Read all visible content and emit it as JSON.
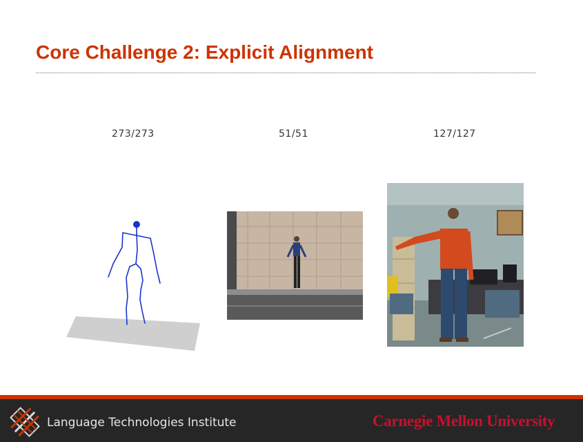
{
  "slide": {
    "title": "Core Challenge 2: Explicit Alignment"
  },
  "panels": [
    {
      "counter": "273/273"
    },
    {
      "counter": "51/51"
    },
    {
      "counter": "127/127"
    }
  ],
  "footer": {
    "institute": "Language Technologies Institute",
    "university": "Carnegie Mellon University"
  },
  "colors": {
    "title": "#cc3300",
    "footer_bar": "#cc3300",
    "footer_bg": "#262626",
    "cmu": "#c8102e",
    "skeleton": "#1a33cc"
  }
}
